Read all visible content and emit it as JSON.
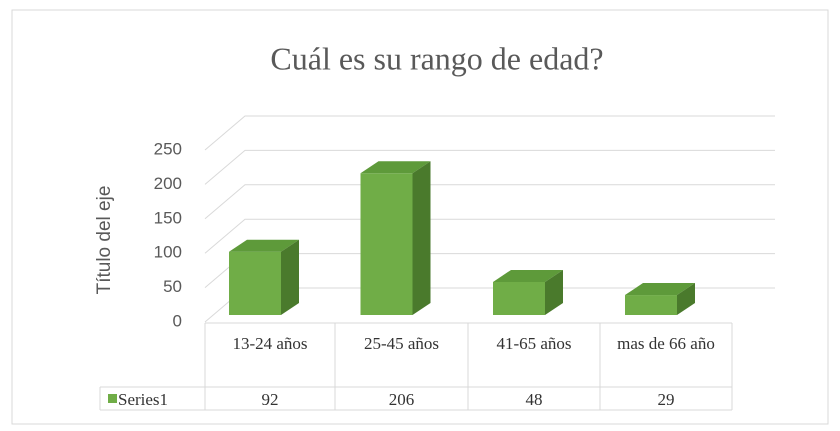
{
  "chart_data": {
    "type": "bar3d",
    "title": "Cuál es su rango de edad?",
    "y_label": "Título del eje",
    "categories": [
      "13-24 años",
      "25-45 años",
      "41-65 años",
      "mas de 66 año"
    ],
    "series": [
      {
        "name": "Series1",
        "color": "#70ad47",
        "values": [
          92,
          206,
          48,
          29
        ]
      }
    ],
    "ylim": [
      0,
      250
    ],
    "yticks": [
      0,
      50,
      100,
      150,
      200,
      250
    ],
    "grid": true,
    "data_table": true
  }
}
